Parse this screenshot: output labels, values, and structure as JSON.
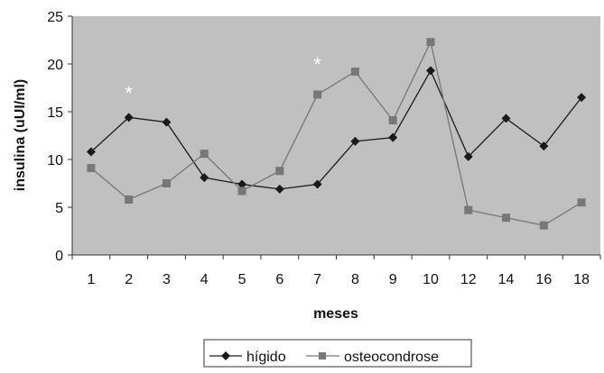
{
  "chart_data": {
    "type": "line",
    "ylabel": "insulina (uUI/ml)",
    "xlabel": "meses",
    "categories": [
      "1",
      "2",
      "3",
      "4",
      "5",
      "6",
      "7",
      "8",
      "9",
      "10",
      "12",
      "14",
      "16",
      "18"
    ],
    "ylim": [
      0,
      25
    ],
    "yticks": [
      "0",
      "5",
      "10",
      "15",
      "20",
      "25"
    ],
    "grid": false,
    "legend_position": "bottom",
    "annotations": [
      {
        "text": "*",
        "category": "2",
        "y": 17
      },
      {
        "text": "*",
        "category": "7",
        "y": 20
      }
    ],
    "series": [
      {
        "name": "hígido",
        "marker": "diamond",
        "color": "#1a1a1a",
        "values": [
          10.8,
          14.4,
          13.9,
          8.1,
          7.4,
          6.9,
          7.4,
          11.9,
          12.3,
          19.3,
          10.3,
          14.3,
          11.4,
          16.5
        ]
      },
      {
        "name": "osteocondrose",
        "marker": "square",
        "color": "#777777",
        "values": [
          9.1,
          5.8,
          7.5,
          10.6,
          6.7,
          8.8,
          16.8,
          19.2,
          14.1,
          22.3,
          4.7,
          3.9,
          3.1,
          5.5
        ]
      }
    ],
    "plot_background": "#c0c0c0"
  }
}
